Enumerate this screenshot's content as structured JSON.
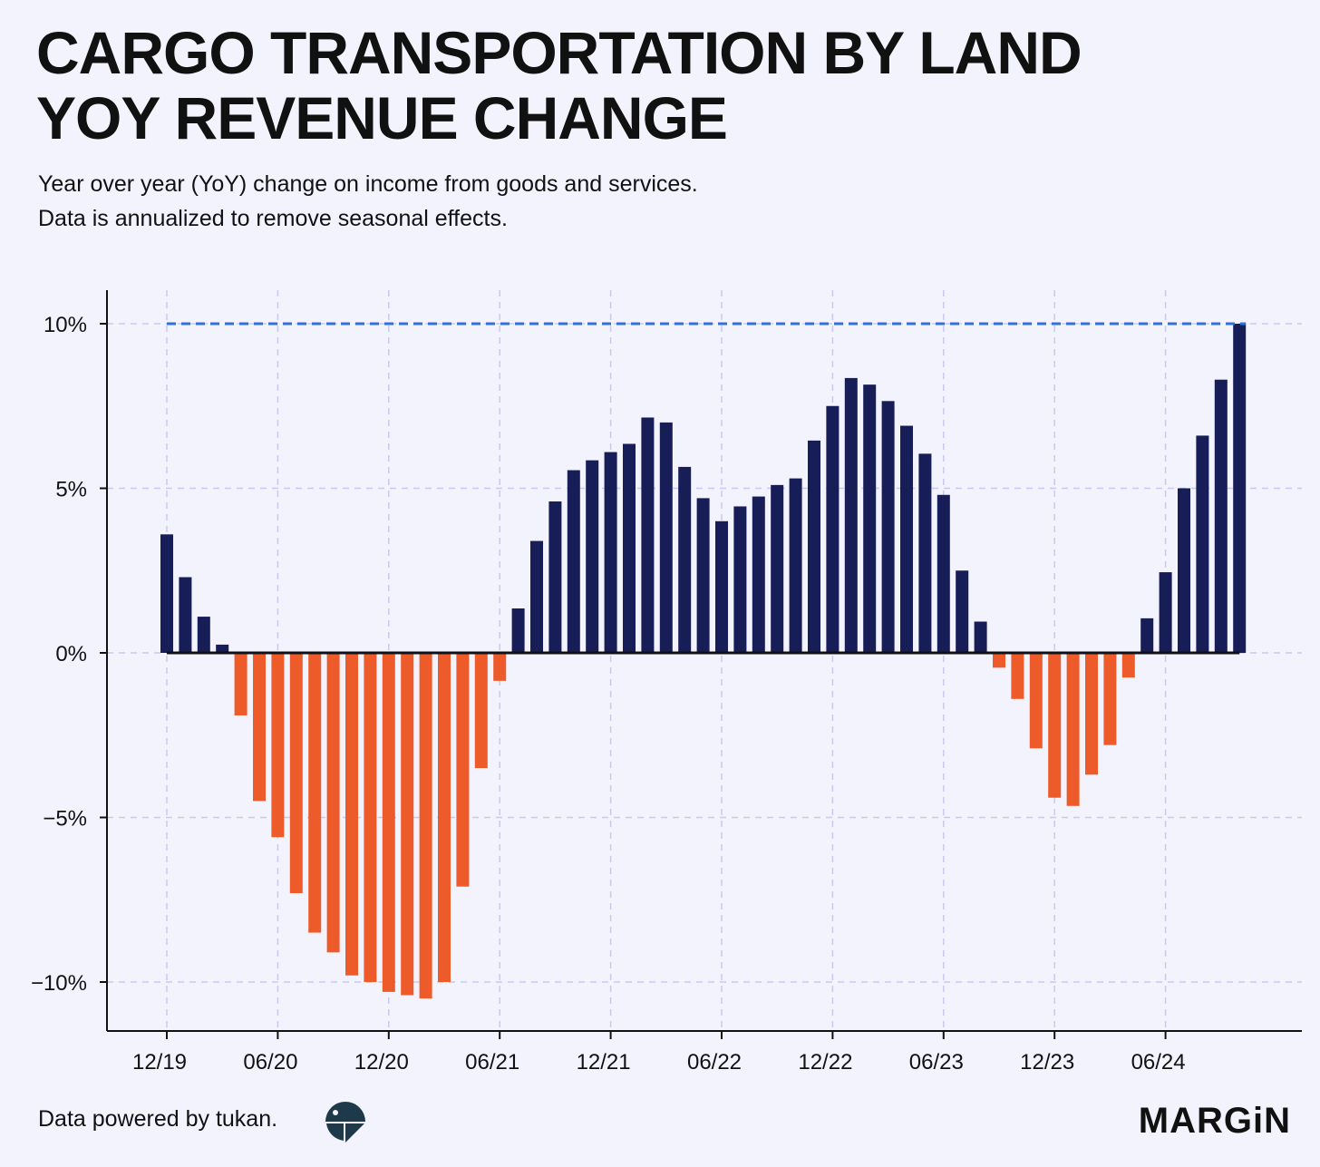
{
  "title_lines": [
    "CARGO TRANSPORTATION BY LAND",
    "YOY REVENUE CHANGE"
  ],
  "subtitle_lines": [
    "Year over year (YoY) change on income from goods and services.",
    "Data is annualized to remove seasonal effects."
  ],
  "footer": {
    "source_text": "Data powered by tukan.",
    "source_logo_icon": "tukan-logo-icon",
    "brand": "MARGiN"
  },
  "colors": {
    "positive": "#161d57",
    "negative": "#ee5b2b",
    "reference_line": "#2f72d8",
    "grid": "#c7c9f2",
    "background": "#f3f3fe"
  },
  "chart_data": {
    "type": "bar",
    "x_start": "12/19",
    "x_tick_labels": [
      "12/19",
      "06/20",
      "12/20",
      "06/21",
      "12/21",
      "06/22",
      "12/22",
      "06/23",
      "12/23",
      "06/24"
    ],
    "y_tick_labels": [
      "10%",
      "5%",
      "0%",
      "−5%",
      "−10%"
    ],
    "y_ticks": [
      10,
      5,
      0,
      -5,
      -10
    ],
    "ylim": [
      -11.5,
      11
    ],
    "unit": "%",
    "reference_line": {
      "value": 10,
      "style": "dashed"
    },
    "grid": true,
    "values": [
      3.6,
      2.3,
      1.1,
      0.25,
      -1.9,
      -4.5,
      -5.6,
      -7.3,
      -8.5,
      -9.1,
      -9.8,
      -10.0,
      -10.3,
      -10.4,
      -10.5,
      -10.0,
      -7.1,
      -3.5,
      -0.85,
      1.35,
      3.4,
      4.6,
      5.55,
      5.85,
      6.1,
      6.35,
      7.15,
      7.0,
      5.65,
      4.7,
      4.0,
      4.45,
      4.75,
      5.1,
      5.3,
      6.45,
      7.5,
      8.35,
      8.15,
      7.65,
      6.9,
      6.05,
      4.8,
      2.5,
      0.95,
      -0.45,
      -1.4,
      -2.9,
      -4.4,
      -4.65,
      -3.7,
      -2.8,
      -0.75,
      1.05,
      2.45,
      5.0,
      6.6,
      8.3,
      10.0
    ]
  }
}
